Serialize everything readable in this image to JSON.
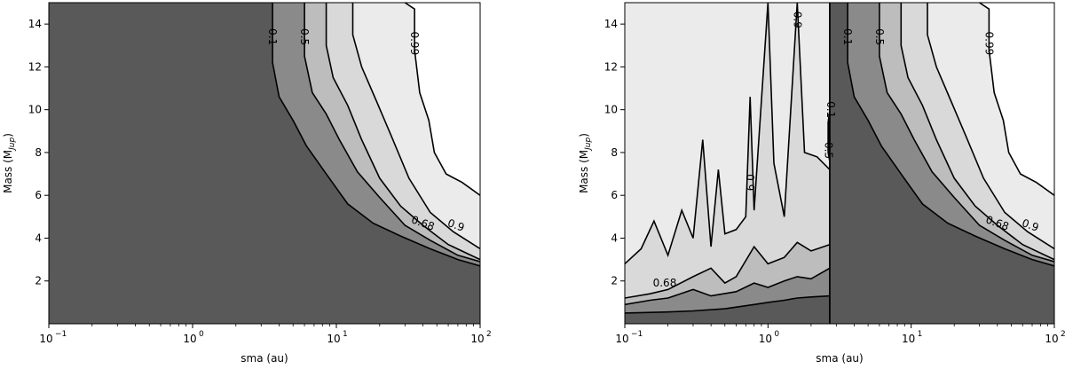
{
  "chart_data": [
    {
      "type": "contour",
      "xlabel": "sma (au)",
      "ylabel_main": "Mass (M",
      "ylabel_sub": "Jup",
      "ylabel_close": ")",
      "xscale": "log",
      "xlim": [
        0.1,
        100
      ],
      "ylim": [
        0,
        15
      ],
      "x_tick_base": "10",
      "x_ticks": [
        {
          "value": 0.1,
          "exp": "−1"
        },
        {
          "value": 1,
          "exp": "0"
        },
        {
          "value": 10,
          "exp": "1"
        },
        {
          "value": 100,
          "exp": "2"
        }
      ],
      "y_ticks": [
        2,
        4,
        6,
        8,
        10,
        12,
        14
      ],
      "levels": [
        0.1,
        0.5,
        0.68,
        0.9,
        0.99
      ],
      "fill_colors": [
        "#595959",
        "#8a8a8a",
        "#bdbdbd",
        "#d9d9d9",
        "#ebebeb",
        "#ffffff"
      ],
      "contours": [
        {
          "level": 0.1,
          "points": [
            [
              3.6,
              15
            ],
            [
              3.6,
              12.2
            ],
            [
              4.0,
              10.6
            ],
            [
              5.0,
              9.5
            ],
            [
              6.2,
              8.3
            ],
            [
              8.5,
              7.0
            ],
            [
              12,
              5.6
            ],
            [
              18,
              4.7
            ],
            [
              28,
              4.1
            ],
            [
              45,
              3.5
            ],
            [
              70,
              3.0
            ],
            [
              100,
              2.7
            ]
          ]
        },
        {
          "level": 0.5,
          "points": [
            [
              6.0,
              15
            ],
            [
              6.0,
              12.5
            ],
            [
              6.8,
              10.8
            ],
            [
              8.5,
              9.8
            ],
            [
              10.5,
              8.6
            ],
            [
              14,
              7.1
            ],
            [
              20,
              5.9
            ],
            [
              30,
              4.6
            ],
            [
              45,
              3.9
            ],
            [
              70,
              3.2
            ],
            [
              100,
              2.9
            ]
          ]
        },
        {
          "level": 0.68,
          "points": [
            [
              8.5,
              15
            ],
            [
              8.5,
              13.0
            ],
            [
              9.5,
              11.5
            ],
            [
              12,
              10.2
            ],
            [
              15,
              8.6
            ],
            [
              20,
              6.8
            ],
            [
              28,
              5.5
            ],
            [
              40,
              4.6
            ],
            [
              60,
              3.7
            ],
            [
              100,
              3.0
            ]
          ]
        },
        {
          "level": 0.9,
          "points": [
            [
              13,
              15
            ],
            [
              13,
              13.5
            ],
            [
              15,
              12.0
            ],
            [
              19,
              10.4
            ],
            [
              24,
              8.8
            ],
            [
              32,
              6.8
            ],
            [
              45,
              5.2
            ],
            [
              65,
              4.3
            ],
            [
              100,
              3.5
            ]
          ]
        },
        {
          "level": 0.99,
          "points": [
            [
              30,
              15
            ],
            [
              35,
              14.7
            ],
            [
              35,
              12.8
            ],
            [
              38,
              10.8
            ],
            [
              44,
              9.5
            ],
            [
              48,
              8.0
            ],
            [
              58,
              7.0
            ],
            [
              75,
              6.6
            ],
            [
              100,
              6.0
            ]
          ]
        }
      ],
      "contour_labels": [
        {
          "text": "0.1",
          "x": 3.6,
          "y": 13.4,
          "rot": 90
        },
        {
          "text": "0.5",
          "x": 6.0,
          "y": 13.4,
          "rot": 90
        },
        {
          "text": "0.99",
          "x": 35,
          "y": 13.1,
          "rot": 90
        },
        {
          "text": "0.9",
          "x": 68,
          "y": 4.6,
          "rot": 20
        },
        {
          "text": "0.68",
          "x": 40,
          "y": 4.7,
          "rot": 20
        }
      ]
    },
    {
      "type": "contour",
      "xlabel": "sma (au)",
      "ylabel_main": "Mass (M",
      "ylabel_sub": "Jup",
      "ylabel_close": ")",
      "xscale": "log",
      "xlim": [
        0.1,
        100
      ],
      "ylim": [
        0,
        15
      ],
      "x_tick_base": "10",
      "x_ticks": [
        {
          "value": 0.1,
          "exp": "−1"
        },
        {
          "value": 1,
          "exp": "0"
        },
        {
          "value": 10,
          "exp": "1"
        },
        {
          "value": 100,
          "exp": "2"
        }
      ],
      "y_ticks": [
        2,
        4,
        6,
        8,
        10,
        12,
        14
      ],
      "levels": [
        0.1,
        0.5,
        0.68,
        0.9,
        0.99
      ],
      "fill_colors": [
        "#595959",
        "#8a8a8a",
        "#bdbdbd",
        "#d9d9d9",
        "#ebebeb",
        "#ffffff"
      ],
      "bands": [
        {
          "level": 0.1,
          "points": [
            [
              0.1,
              0.5
            ],
            [
              0.2,
              0.55
            ],
            [
              0.3,
              0.6
            ],
            [
              0.5,
              0.7
            ],
            [
              0.8,
              0.9
            ],
            [
              1.0,
              1.0
            ],
            [
              1.3,
              1.1
            ],
            [
              1.6,
              1.2
            ],
            [
              2.0,
              1.25
            ],
            [
              2.7,
              1.3
            ]
          ]
        },
        {
          "level": 0.5,
          "points": [
            [
              0.1,
              0.9
            ],
            [
              0.15,
              1.1
            ],
            [
              0.2,
              1.2
            ],
            [
              0.3,
              1.6
            ],
            [
              0.4,
              1.3
            ],
            [
              0.6,
              1.5
            ],
            [
              0.8,
              1.9
            ],
            [
              1.0,
              1.7
            ],
            [
              1.3,
              2.0
            ],
            [
              1.6,
              2.2
            ],
            [
              2.0,
              2.1
            ],
            [
              2.7,
              2.6
            ]
          ]
        },
        {
          "level": 0.68,
          "points": [
            [
              0.1,
              1.2
            ],
            [
              0.15,
              1.4
            ],
            [
              0.2,
              1.6
            ],
            [
              0.3,
              2.2
            ],
            [
              0.4,
              2.6
            ],
            [
              0.5,
              1.9
            ],
            [
              0.6,
              2.2
            ],
            [
              0.8,
              3.6
            ],
            [
              1.0,
              2.8
            ],
            [
              1.3,
              3.1
            ],
            [
              1.6,
              3.8
            ],
            [
              2.0,
              3.4
            ],
            [
              2.7,
              3.7
            ]
          ]
        },
        {
          "level": 0.9,
          "points": [
            [
              0.1,
              2.8
            ],
            [
              0.13,
              3.5
            ],
            [
              0.16,
              4.8
            ],
            [
              0.2,
              3.2
            ],
            [
              0.25,
              5.3
            ],
            [
              0.3,
              4.0
            ],
            [
              0.35,
              8.6
            ],
            [
              0.4,
              3.6
            ],
            [
              0.45,
              7.2
            ],
            [
              0.5,
              4.2
            ],
            [
              0.6,
              4.4
            ],
            [
              0.7,
              5.0
            ],
            [
              0.75,
              10.6
            ],
            [
              0.8,
              5.3
            ],
            [
              1.0,
              15.0
            ],
            [
              1.1,
              7.5
            ],
            [
              1.3,
              5.0
            ],
            [
              1.6,
              15.0
            ],
            [
              1.8,
              8.0
            ],
            [
              2.2,
              7.8
            ],
            [
              2.7,
              7.2
            ]
          ]
        }
      ],
      "step_x": 2.7,
      "right_contours": [
        {
          "level": 0.1,
          "points": [
            [
              3.6,
              15
            ],
            [
              3.6,
              12.2
            ],
            [
              4.0,
              10.6
            ],
            [
              5.0,
              9.5
            ],
            [
              6.2,
              8.3
            ],
            [
              8.5,
              7.0
            ],
            [
              12,
              5.6
            ],
            [
              18,
              4.7
            ],
            [
              28,
              4.1
            ],
            [
              45,
              3.5
            ],
            [
              70,
              3.0
            ],
            [
              100,
              2.7
            ]
          ]
        },
        {
          "level": 0.5,
          "points": [
            [
              6.0,
              15
            ],
            [
              6.0,
              12.5
            ],
            [
              6.8,
              10.8
            ],
            [
              8.5,
              9.8
            ],
            [
              10.5,
              8.6
            ],
            [
              14,
              7.1
            ],
            [
              20,
              5.9
            ],
            [
              30,
              4.6
            ],
            [
              45,
              3.9
            ],
            [
              70,
              3.2
            ],
            [
              100,
              2.9
            ]
          ]
        },
        {
          "level": 0.68,
          "points": [
            [
              8.5,
              15
            ],
            [
              8.5,
              13.0
            ],
            [
              9.5,
              11.5
            ],
            [
              12,
              10.2
            ],
            [
              15,
              8.6
            ],
            [
              20,
              6.8
            ],
            [
              28,
              5.5
            ],
            [
              40,
              4.6
            ],
            [
              60,
              3.7
            ],
            [
              100,
              3.0
            ]
          ]
        },
        {
          "level": 0.9,
          "points": [
            [
              13,
              15
            ],
            [
              13,
              13.5
            ],
            [
              15,
              12.0
            ],
            [
              19,
              10.4
            ],
            [
              24,
              8.8
            ],
            [
              32,
              6.8
            ],
            [
              45,
              5.2
            ],
            [
              65,
              4.3
            ],
            [
              100,
              3.5
            ]
          ]
        },
        {
          "level": 0.99,
          "points": [
            [
              30,
              15
            ],
            [
              35,
              14.7
            ],
            [
              35,
              12.8
            ],
            [
              38,
              10.8
            ],
            [
              44,
              9.5
            ],
            [
              48,
              8.0
            ],
            [
              58,
              7.0
            ],
            [
              75,
              6.6
            ],
            [
              100,
              6.0
            ]
          ]
        }
      ],
      "contour_labels": [
        {
          "text": "0.9",
          "x": 1.6,
          "y": 14.2,
          "rot": 90
        },
        {
          "text": "0.9",
          "x": 0.75,
          "y": 6.6,
          "rot": 90
        },
        {
          "text": "0.1",
          "x": 2.75,
          "y": 10.0,
          "rot": 90
        },
        {
          "text": "0.5",
          "x": 2.65,
          "y": 8.1,
          "rot": 90
        },
        {
          "text": "0.68",
          "x": 0.19,
          "y": 1.9,
          "rot": 0
        },
        {
          "text": "0.1",
          "x": 3.6,
          "y": 13.4,
          "rot": 90
        },
        {
          "text": "0.5",
          "x": 6.0,
          "y": 13.4,
          "rot": 90
        },
        {
          "text": "0.99",
          "x": 35,
          "y": 13.1,
          "rot": 90
        },
        {
          "text": "0.9",
          "x": 68,
          "y": 4.6,
          "rot": 20
        },
        {
          "text": "0.68",
          "x": 40,
          "y": 4.7,
          "rot": 20
        }
      ]
    }
  ]
}
